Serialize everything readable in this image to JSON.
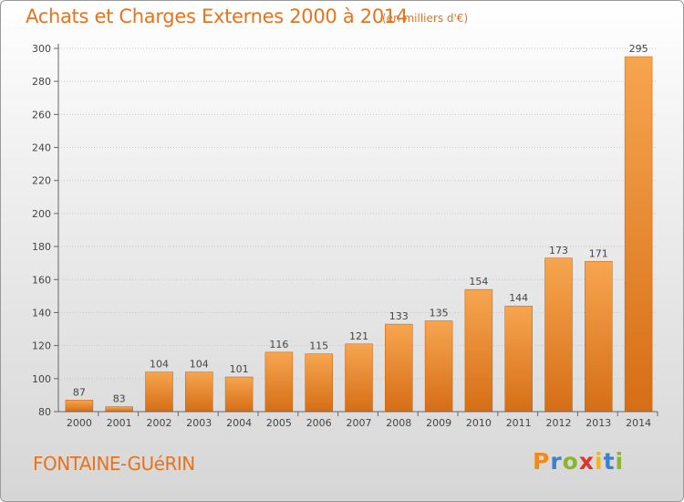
{
  "header": {
    "title": "Achats et Charges Externes 2000 à 2014",
    "unit": "(en milliers d'€)"
  },
  "footer": {
    "commune": "FONTAINE-GUéRIN",
    "logo_text": "Proxiti",
    "logo_colors": [
      "#f08a1a",
      "#3d7fc9",
      "#8ab52e",
      "#e0322b",
      "#f0b51a",
      "#3d7fc9",
      "#8ab52e"
    ]
  },
  "colors": {
    "bar_light": "#f7a550",
    "bar_dark": "#d56e16",
    "text": "#e8731f",
    "axis_label": "#444444",
    "grid": "#c8c8c8"
  },
  "chart_data": {
    "type": "bar",
    "title": "Achats et Charges Externes 2000 à 2014",
    "subtitle": "(en milliers d'€)",
    "categories": [
      "2000",
      "2001",
      "2002",
      "2003",
      "2004",
      "2005",
      "2006",
      "2007",
      "2008",
      "2009",
      "2010",
      "2011",
      "2012",
      "2013",
      "2014"
    ],
    "values": [
      87,
      83,
      104,
      104,
      101,
      116,
      115,
      121,
      133,
      135,
      154,
      144,
      173,
      171,
      295
    ],
    "xlabel": "",
    "ylabel": "",
    "ylim": [
      80,
      300
    ],
    "yticks": [
      80,
      100,
      120,
      140,
      160,
      180,
      200,
      220,
      240,
      260,
      280,
      300
    ],
    "grid": true,
    "legend": "none"
  }
}
